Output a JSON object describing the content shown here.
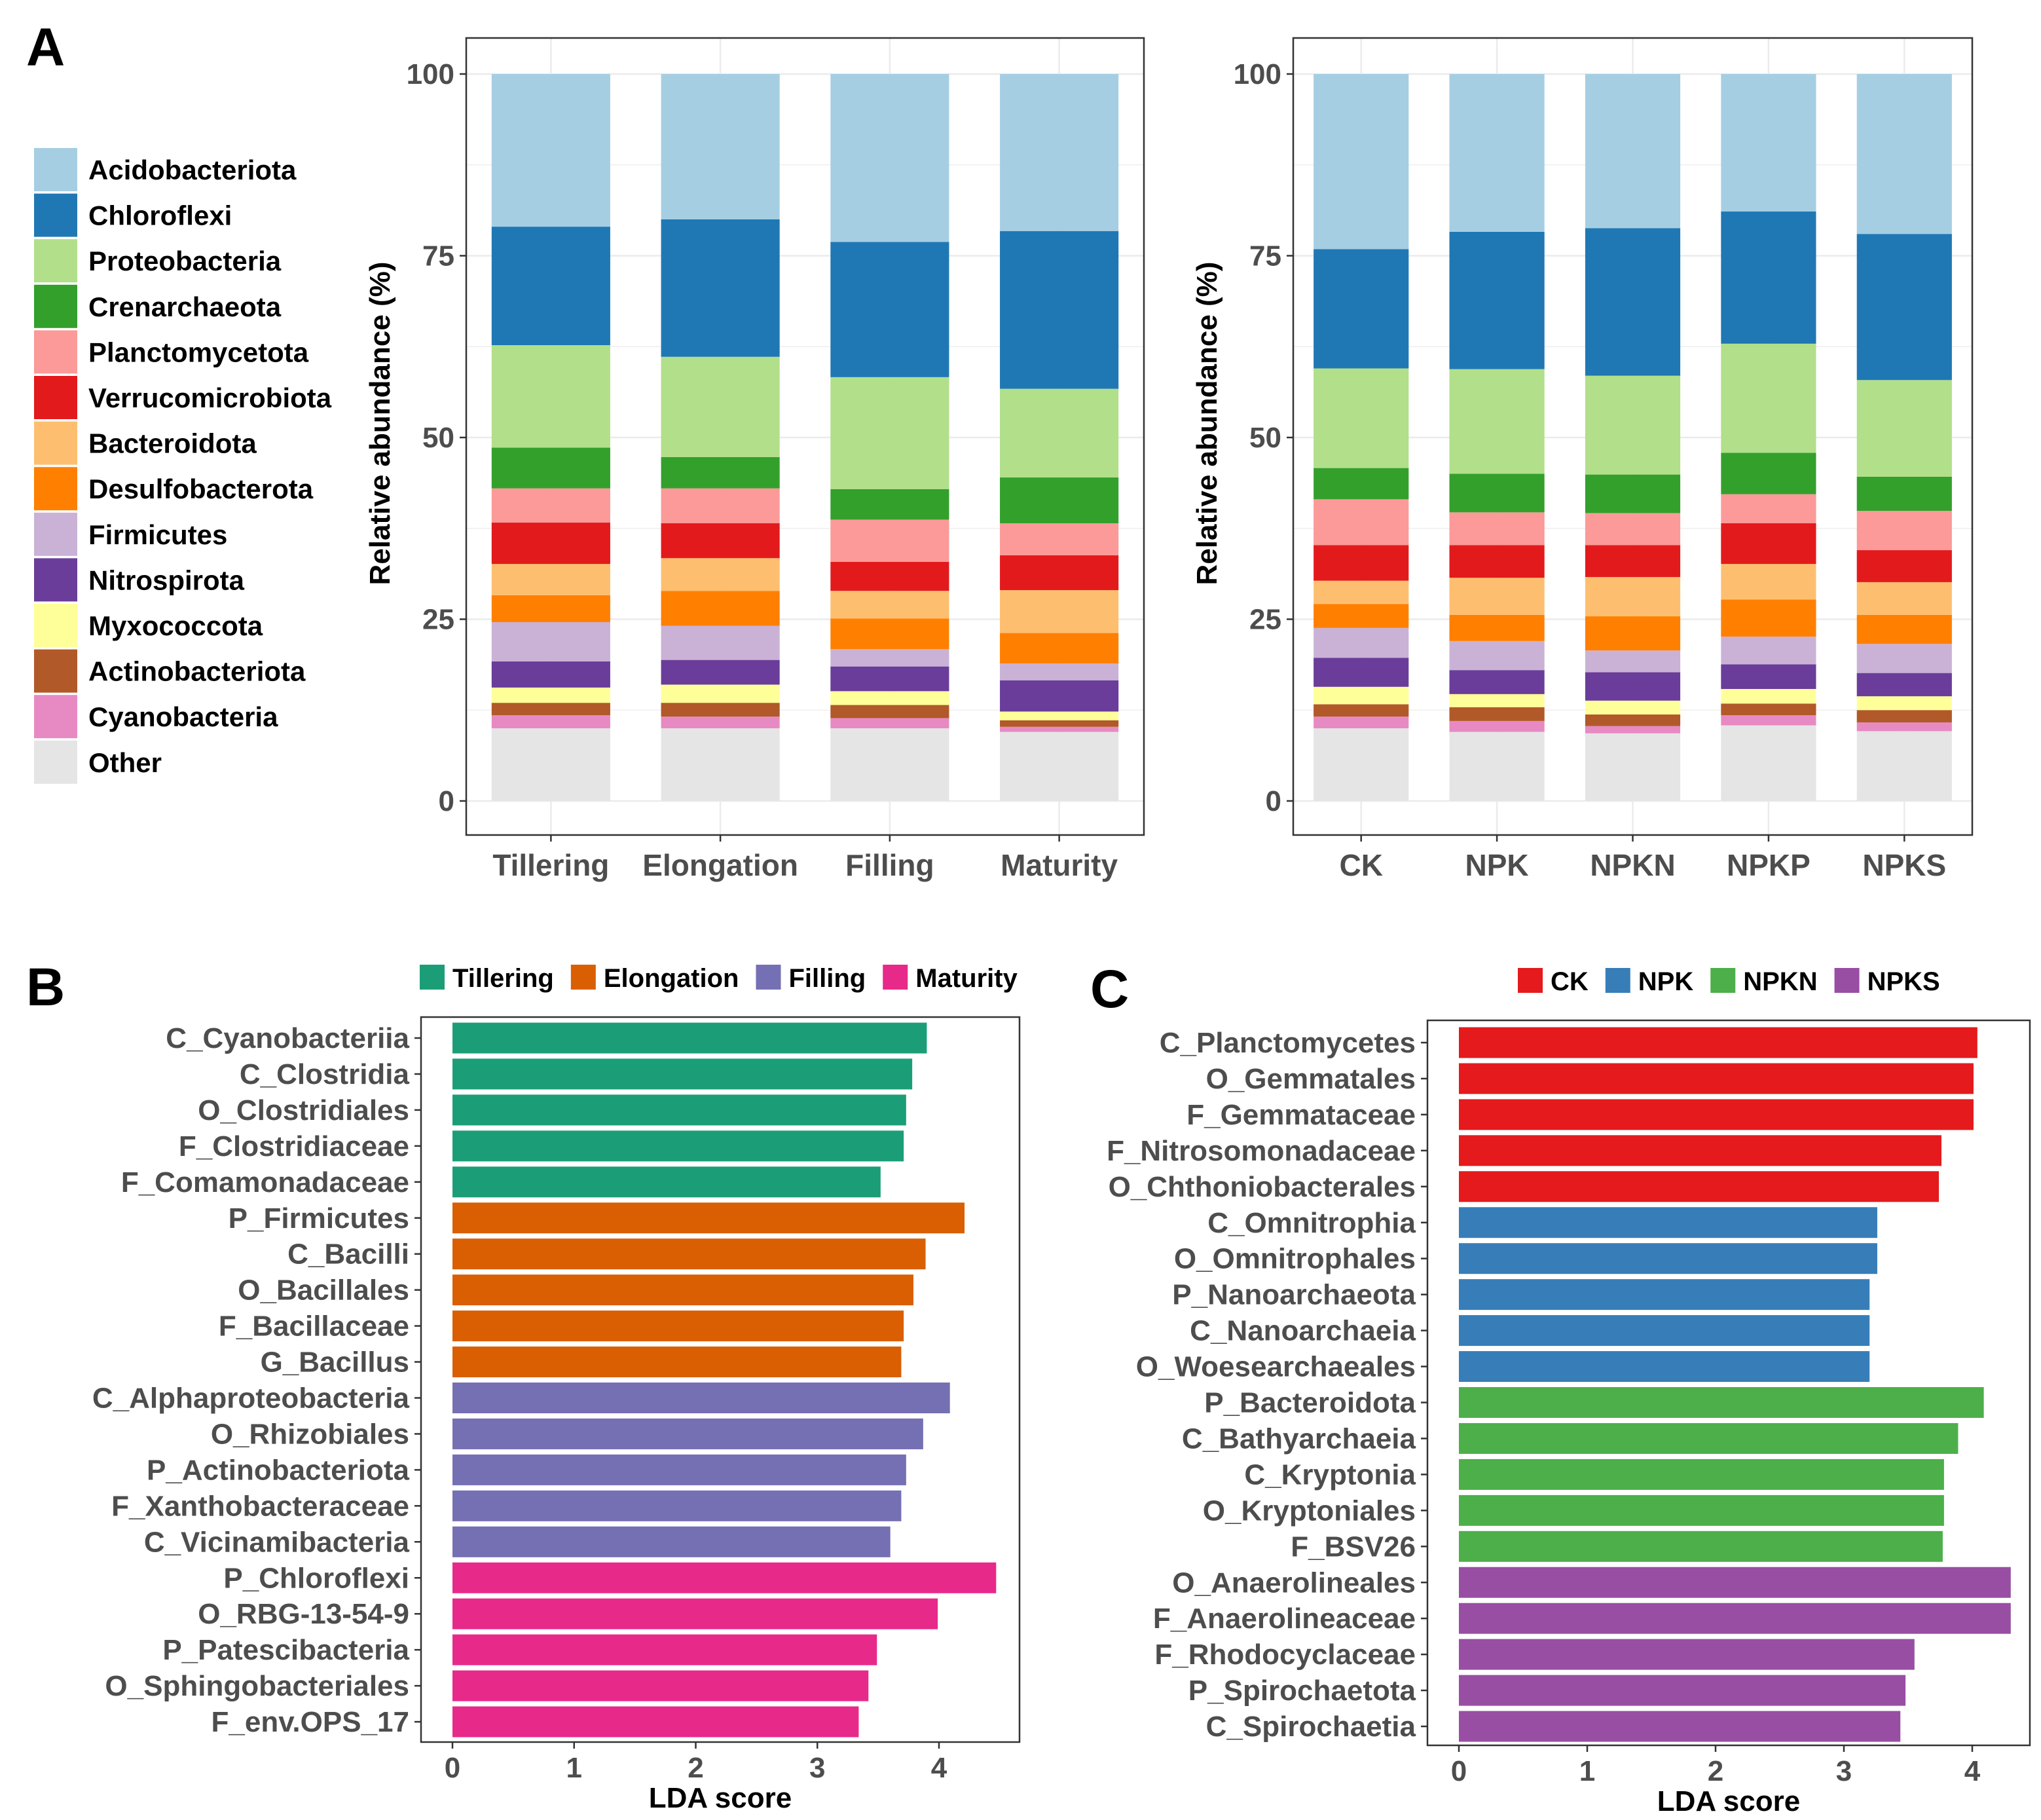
{
  "panel_labels": {
    "a": "A",
    "b": "B",
    "c": "C"
  },
  "chart_data": [
    {
      "id": "stacked_stage",
      "type": "bar",
      "stacked": true,
      "xlabel": "",
      "ylabel": "Relative abundance (%)",
      "ylim": [
        0,
        100
      ],
      "yticks": [
        0,
        25,
        50,
        75,
        100
      ],
      "grid": true,
      "legend_position": "left",
      "categories": [
        "Tillering",
        "Elongation",
        "Filling",
        "Maturity"
      ],
      "series": [
        {
          "name": "Other",
          "color": "#e5e5e5",
          "values": [
            10.0,
            10.0,
            10.0,
            9.5
          ]
        },
        {
          "name": "Cyanobacteria",
          "color": "#e78ac3",
          "values": [
            1.8,
            1.6,
            1.4,
            0.7
          ]
        },
        {
          "name": "Actinobacteriota",
          "color": "#b15928",
          "values": [
            1.7,
            1.9,
            1.8,
            0.9
          ]
        },
        {
          "name": "Myxococcota",
          "color": "#ffff99",
          "values": [
            2.1,
            2.5,
            1.9,
            1.2
          ]
        },
        {
          "name": "Nitrospirota",
          "color": "#6a3d9a",
          "values": [
            3.6,
            3.4,
            3.4,
            4.3
          ]
        },
        {
          "name": "Firmicutes",
          "color": "#cab2d6",
          "values": [
            5.4,
            4.7,
            2.4,
            2.3
          ]
        },
        {
          "name": "Desulfobacterota",
          "color": "#ff7f00",
          "values": [
            3.7,
            4.8,
            4.2,
            4.2
          ]
        },
        {
          "name": "Bacteroidota",
          "color": "#fdbf6f",
          "values": [
            4.3,
            4.5,
            3.8,
            5.9
          ]
        },
        {
          "name": "Verrucomicrobiota",
          "color": "#e31a1c",
          "values": [
            5.7,
            4.8,
            4.0,
            4.8
          ]
        },
        {
          "name": "Planctomycetota",
          "color": "#fb9a99",
          "values": [
            4.7,
            4.8,
            5.8,
            4.4
          ]
        },
        {
          "name": "Crenarchaeota",
          "color": "#33a02c",
          "values": [
            5.6,
            4.3,
            4.2,
            6.3
          ]
        },
        {
          "name": "Proteobacteria",
          "color": "#b2df8a",
          "values": [
            14.1,
            13.8,
            15.4,
            12.2
          ]
        },
        {
          "name": "Chloroflexi",
          "color": "#1f78b4",
          "values": [
            16.3,
            18.9,
            18.6,
            21.7
          ]
        },
        {
          "name": "Acidobacteriota",
          "color": "#a6cee3",
          "values": [
            21.0,
            20.0,
            23.1,
            21.6
          ]
        }
      ]
    },
    {
      "id": "stacked_treatment",
      "type": "bar",
      "stacked": true,
      "xlabel": "",
      "ylabel": "Relative abundance (%)",
      "ylim": [
        0,
        100
      ],
      "yticks": [
        0,
        25,
        50,
        75,
        100
      ],
      "grid": true,
      "categories": [
        "CK",
        "NPK",
        "NPKN",
        "NPKP",
        "NPKS"
      ],
      "series": [
        {
          "name": "Other",
          "color": "#e5e5e5",
          "values": [
            10.0,
            9.5,
            9.3,
            10.4,
            9.6
          ]
        },
        {
          "name": "Cyanobacteria",
          "color": "#e78ac3",
          "values": [
            1.6,
            1.5,
            1.0,
            1.4,
            1.2
          ]
        },
        {
          "name": "Actinobacteriota",
          "color": "#b15928",
          "values": [
            1.7,
            1.9,
            1.6,
            1.6,
            1.7
          ]
        },
        {
          "name": "Myxococcota",
          "color": "#ffff99",
          "values": [
            2.4,
            1.8,
            1.9,
            2.0,
            1.9
          ]
        },
        {
          "name": "Nitrospirota",
          "color": "#6a3d9a",
          "values": [
            4.0,
            3.3,
            3.9,
            3.4,
            3.2
          ]
        },
        {
          "name": "Firmicutes",
          "color": "#cab2d6",
          "values": [
            4.1,
            4.0,
            3.0,
            3.8,
            4.0
          ]
        },
        {
          "name": "Desulfobacterota",
          "color": "#ff7f00",
          "values": [
            3.3,
            3.6,
            4.7,
            5.1,
            4.0
          ]
        },
        {
          "name": "Bacteroidota",
          "color": "#fdbf6f",
          "values": [
            3.2,
            5.1,
            5.4,
            4.9,
            4.5
          ]
        },
        {
          "name": "Verrucomicrobiota",
          "color": "#e31a1c",
          "values": [
            4.9,
            4.5,
            4.4,
            5.6,
            4.4
          ]
        },
        {
          "name": "Planctomycetota",
          "color": "#fb9a99",
          "values": [
            6.3,
            4.5,
            4.4,
            4.0,
            5.4
          ]
        },
        {
          "name": "Crenarchaeota",
          "color": "#33a02c",
          "values": [
            4.3,
            5.3,
            5.3,
            5.7,
            4.7
          ]
        },
        {
          "name": "Proteobacteria",
          "color": "#b2df8a",
          "values": [
            13.7,
            14.4,
            13.6,
            15.0,
            13.3
          ]
        },
        {
          "name": "Chloroflexi",
          "color": "#1f78b4",
          "values": [
            16.4,
            18.9,
            20.3,
            18.2,
            20.1
          ]
        },
        {
          "name": "Acidobacteriota",
          "color": "#a6cee3",
          "values": [
            24.1,
            21.7,
            21.2,
            18.9,
            22.0
          ]
        }
      ]
    },
    {
      "id": "lda_stage",
      "type": "bar",
      "orientation": "horizontal",
      "xlabel": "LDA score",
      "ylabel": "",
      "xlim": [
        0,
        4.5
      ],
      "xticks": [
        0,
        1,
        2,
        3,
        4
      ],
      "legend_position": "top",
      "groups": [
        {
          "name": "Tillering",
          "color": "#1b9e77"
        },
        {
          "name": "Elongation",
          "color": "#d95f02"
        },
        {
          "name": "Filling",
          "color": "#7570b3"
        },
        {
          "name": "Maturity",
          "color": "#e7298a"
        }
      ],
      "bars": [
        {
          "label": "C_Cyanobacteriia",
          "value": 3.9,
          "group": "Tillering"
        },
        {
          "label": "C_Clostridia",
          "value": 3.78,
          "group": "Tillering"
        },
        {
          "label": "O_Clostridiales",
          "value": 3.73,
          "group": "Tillering"
        },
        {
          "label": "F_Clostridiaceae",
          "value": 3.71,
          "group": "Tillering"
        },
        {
          "label": "F_Comamonadaceae",
          "value": 3.52,
          "group": "Tillering"
        },
        {
          "label": "P_Firmicutes",
          "value": 4.21,
          "group": "Elongation"
        },
        {
          "label": "C_Bacilli",
          "value": 3.89,
          "group": "Elongation"
        },
        {
          "label": "O_Bacillales",
          "value": 3.79,
          "group": "Elongation"
        },
        {
          "label": "F_Bacillaceae",
          "value": 3.71,
          "group": "Elongation"
        },
        {
          "label": "G_Bacillus",
          "value": 3.69,
          "group": "Elongation"
        },
        {
          "label": "C_Alphaproteobacteria",
          "value": 4.09,
          "group": "Filling"
        },
        {
          "label": "O_Rhizobiales",
          "value": 3.87,
          "group": "Filling"
        },
        {
          "label": "P_Actinobacteriota",
          "value": 3.73,
          "group": "Filling"
        },
        {
          "label": "F_Xanthobacteraceae",
          "value": 3.69,
          "group": "Filling"
        },
        {
          "label": "C_Vicinamibacteria",
          "value": 3.6,
          "group": "Filling"
        },
        {
          "label": "P_Chloroflexi",
          "value": 4.47,
          "group": "Maturity"
        },
        {
          "label": "O_RBG-13-54-9",
          "value": 3.99,
          "group": "Maturity"
        },
        {
          "label": "P_Patescibacteria",
          "value": 3.49,
          "group": "Maturity"
        },
        {
          "label": "O_Sphingobacteriales",
          "value": 3.42,
          "group": "Maturity"
        },
        {
          "label": "F_env.OPS_17",
          "value": 3.34,
          "group": "Maturity"
        }
      ]
    },
    {
      "id": "lda_treatment",
      "type": "bar",
      "orientation": "horizontal",
      "xlabel": "LDA score",
      "ylabel": "",
      "xlim": [
        0,
        4.3
      ],
      "xticks": [
        0,
        1,
        2,
        3,
        4
      ],
      "legend_position": "top",
      "groups": [
        {
          "name": "CK",
          "color": "#e41a1c"
        },
        {
          "name": "NPK",
          "color": "#377eb8"
        },
        {
          "name": "NPKN",
          "color": "#4daf4a"
        },
        {
          "name": "NPKS",
          "color": "#984ea3"
        }
      ],
      "bars": [
        {
          "label": "C_Planctomycetes",
          "value": 4.04,
          "group": "CK"
        },
        {
          "label": "O_Gemmatales",
          "value": 4.01,
          "group": "CK"
        },
        {
          "label": "F_Gemmataceae",
          "value": 4.01,
          "group": "CK"
        },
        {
          "label": "F_Nitrosomonadaceae",
          "value": 3.76,
          "group": "CK"
        },
        {
          "label": "O_Chthoniobacterales",
          "value": 3.74,
          "group": "CK"
        },
        {
          "label": "C_Omnitrophia",
          "value": 3.26,
          "group": "NPK"
        },
        {
          "label": "O_Omnitrophales",
          "value": 3.26,
          "group": "NPK"
        },
        {
          "label": "P_Nanoarchaeota",
          "value": 3.2,
          "group": "NPK"
        },
        {
          "label": "C_Nanoarchaeia",
          "value": 3.2,
          "group": "NPK"
        },
        {
          "label": "O_Woesearchaeales",
          "value": 3.2,
          "group": "NPK"
        },
        {
          "label": "P_Bacteroidota",
          "value": 4.09,
          "group": "NPKN"
        },
        {
          "label": "C_Bathyarchaeia",
          "value": 3.89,
          "group": "NPKN"
        },
        {
          "label": "C_Kryptonia",
          "value": 3.78,
          "group": "NPKN"
        },
        {
          "label": "O_Kryptoniales",
          "value": 3.78,
          "group": "NPKN"
        },
        {
          "label": "F_BSV26",
          "value": 3.77,
          "group": "NPKN"
        },
        {
          "label": "O_Anaerolineales",
          "value": 4.3,
          "group": "NPKS"
        },
        {
          "label": "F_Anaerolineaceae",
          "value": 4.3,
          "group": "NPKS"
        },
        {
          "label": "F_Rhodocyclaceae",
          "value": 3.55,
          "group": "NPKS"
        },
        {
          "label": "P_Spirochaetota",
          "value": 3.48,
          "group": "NPKS"
        },
        {
          "label": "C_Spirochaetia",
          "value": 3.44,
          "group": "NPKS"
        }
      ]
    }
  ]
}
